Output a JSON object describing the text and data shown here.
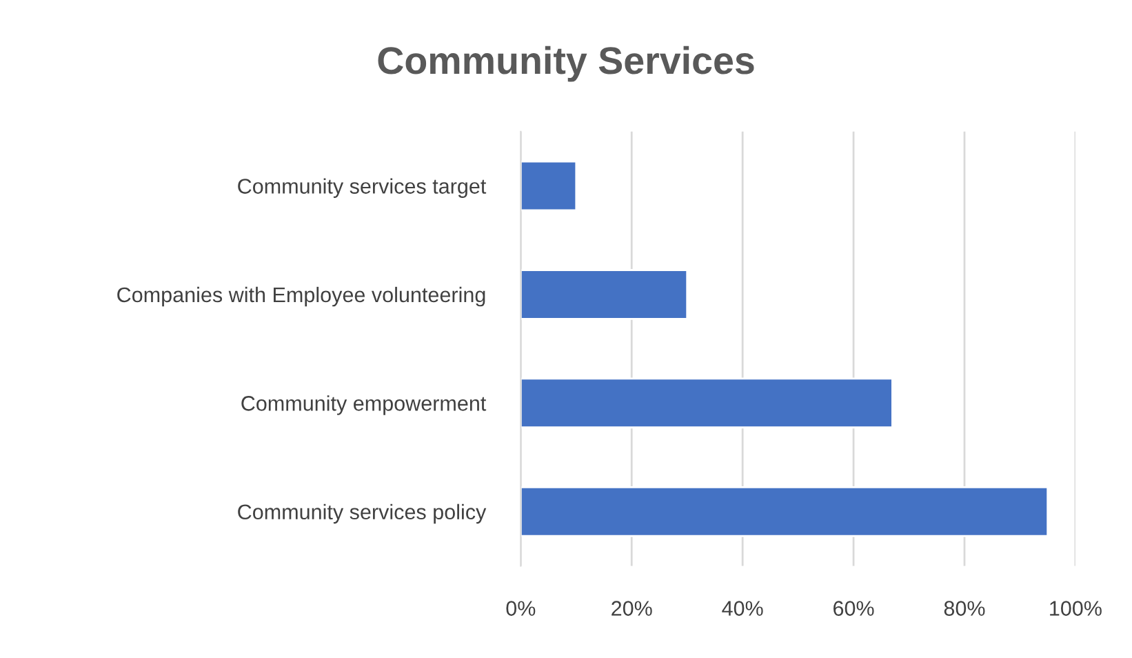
{
  "chart_data": {
    "type": "bar",
    "orientation": "horizontal",
    "title": "Community Services",
    "categories": [
      "Community services target",
      "Companies with Employee volunteering",
      "Community empowerment",
      "Community services policy"
    ],
    "series": [
      {
        "color": "#4472c4",
        "values": [
          10,
          30,
          67,
          95
        ]
      }
    ],
    "xlim": [
      0,
      100
    ],
    "xticks": [
      {
        "value": 0,
        "label": "0%"
      },
      {
        "value": 20,
        "label": "20%"
      },
      {
        "value": 40,
        "label": "40%"
      },
      {
        "value": 60,
        "label": "60%"
      },
      {
        "value": 80,
        "label": "80%"
      },
      {
        "value": 100,
        "label": "100%"
      }
    ],
    "grid": "x"
  }
}
